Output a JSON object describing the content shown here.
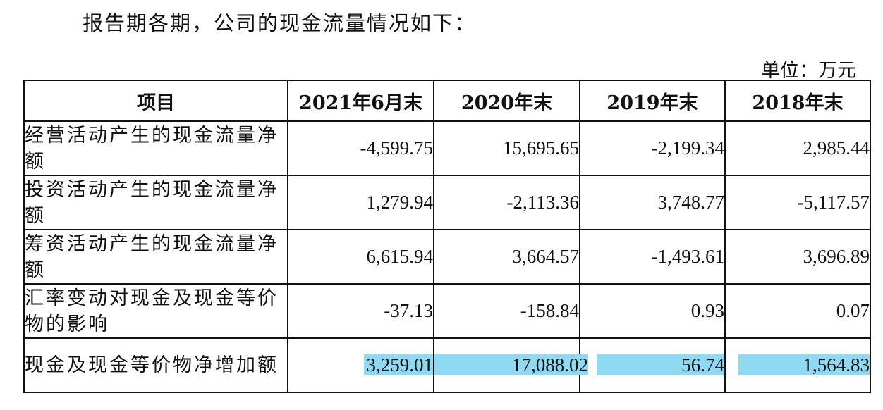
{
  "intro": "报告期各期，公司的现金流量情况如下：",
  "unit": "单位：万元",
  "table": {
    "headers": [
      "项目",
      "2021年6月末",
      "2020年末",
      "2019年末",
      "2018年末"
    ],
    "rows": [
      {
        "label": "经营活动产生的现金流量净额",
        "values": [
          "-4,599.75",
          "15,695.65",
          "-2,199.34",
          "2,985.44"
        ]
      },
      {
        "label": "投资活动产生的现金流量净额",
        "values": [
          "1,279.94",
          "-2,113.36",
          "3,748.77",
          "-5,117.57"
        ]
      },
      {
        "label": "筹资活动产生的现金流量净额",
        "values": [
          "6,615.94",
          "3,664.57",
          "-1,493.61",
          "3,696.89"
        ]
      },
      {
        "label": "汇率变动对现金及现金等价物的影响",
        "values": [
          "-37.13",
          "-158.84",
          "0.93",
          "0.07"
        ]
      },
      {
        "label": "现金及现金等价物净增加额",
        "values": [
          "3,259.01",
          "17,088.02",
          "56.74",
          "1,564.83"
        ]
      }
    ]
  },
  "highlight_color": "#8fd9f2"
}
